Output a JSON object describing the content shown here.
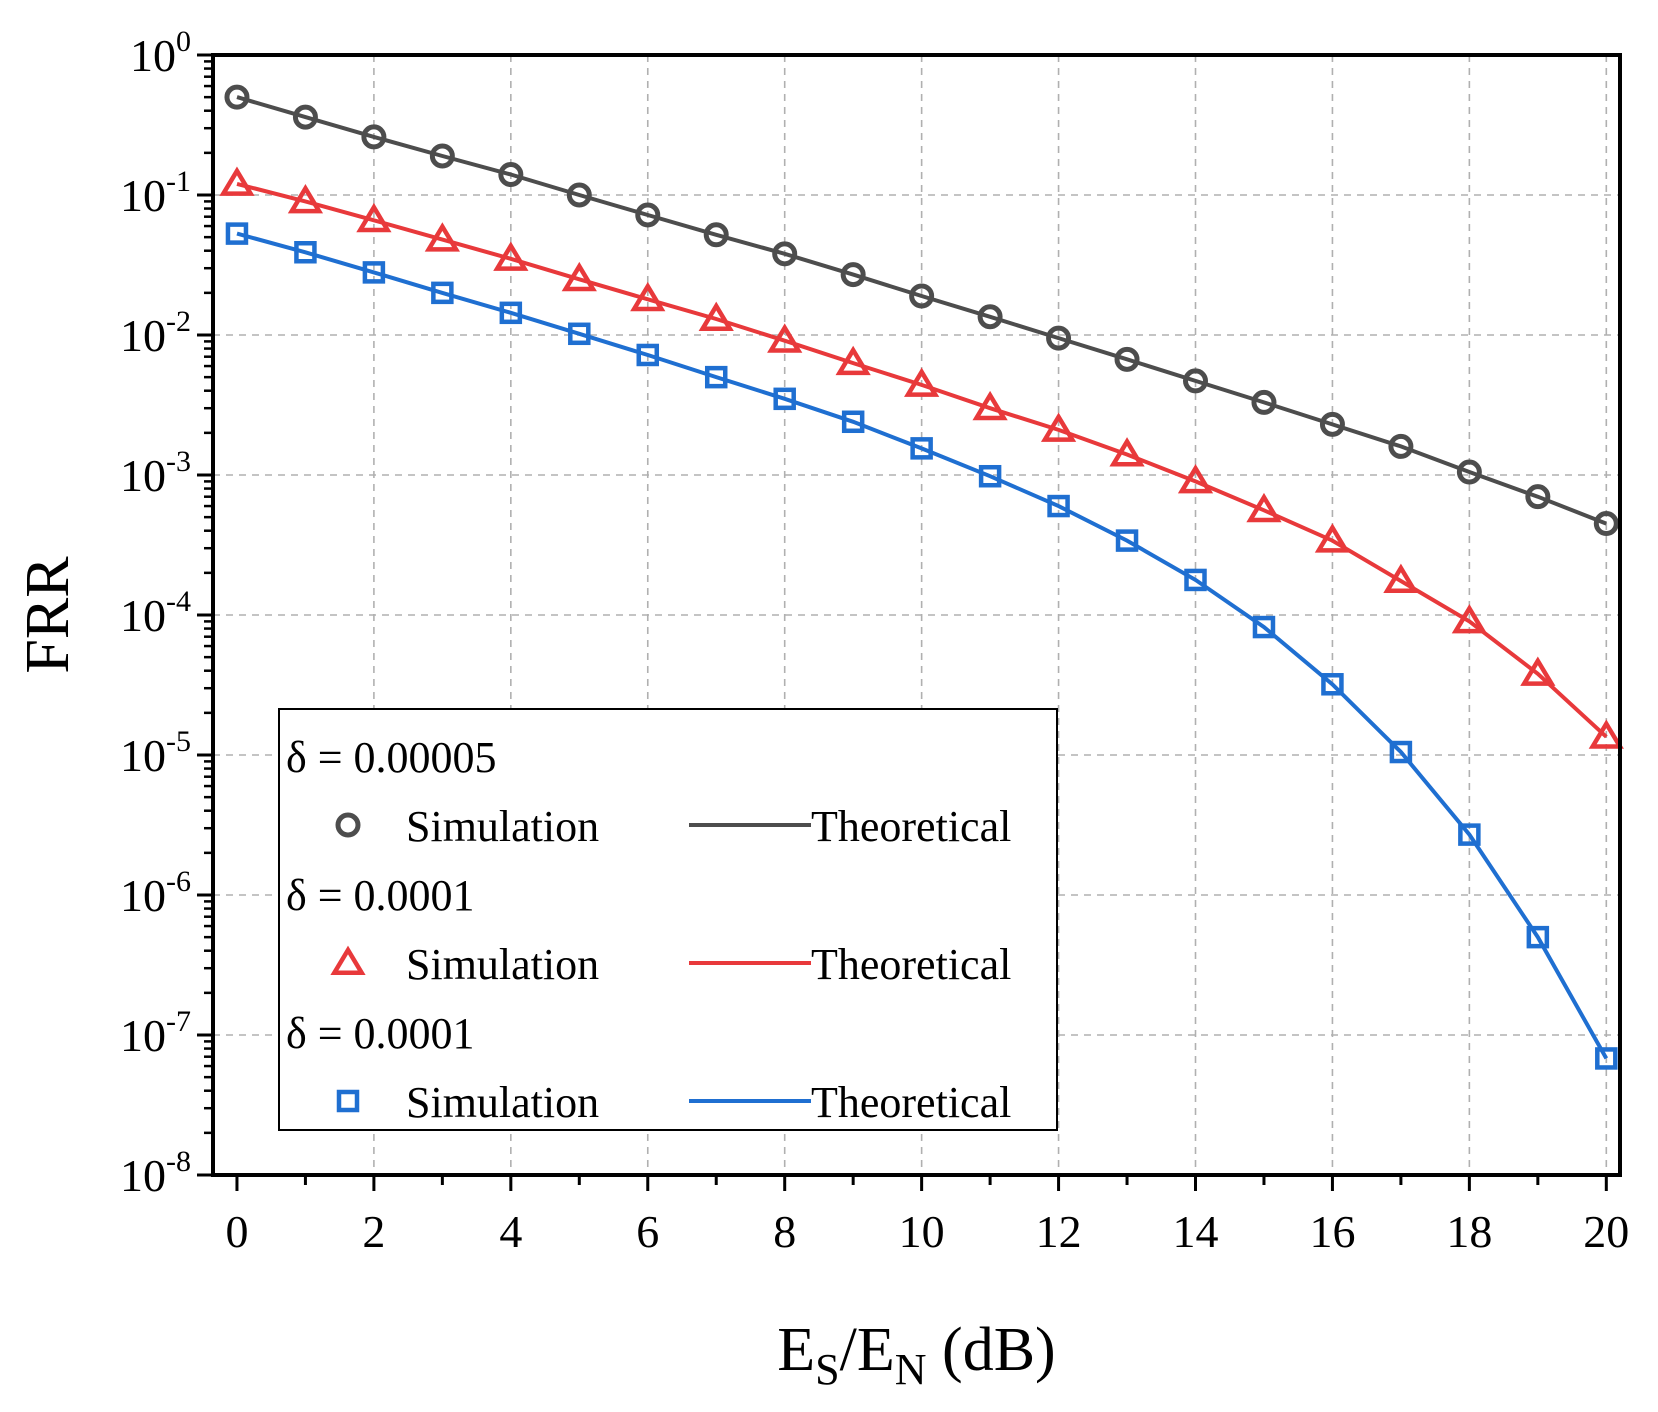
{
  "chart_data": {
    "type": "line",
    "yscale": "log",
    "xlabel": {
      "main": "E",
      "sub1": "S",
      "mid": "/E",
      "sub2": "N",
      "tail": " (dB)"
    },
    "ylabel": "FRR",
    "xlim": [
      0,
      20
    ],
    "ylim_exp": [
      -8,
      0
    ],
    "xticks": [
      0,
      2,
      4,
      6,
      8,
      10,
      12,
      14,
      16,
      18,
      20
    ],
    "yticks": [
      {
        "base": "10",
        "exp": "0"
      },
      {
        "base": "10",
        "exp": "-1"
      },
      {
        "base": "10",
        "exp": "-2"
      },
      {
        "base": "10",
        "exp": "-3"
      },
      {
        "base": "10",
        "exp": "-4"
      },
      {
        "base": "10",
        "exp": "-5"
      },
      {
        "base": "10",
        "exp": "-6"
      },
      {
        "base": "10",
        "exp": "-7"
      },
      {
        "base": "10",
        "exp": "-8"
      }
    ],
    "grid": true,
    "x": [
      0,
      1,
      2,
      3,
      4,
      5,
      6,
      7,
      8,
      9,
      10,
      11,
      12,
      13,
      14,
      15,
      16,
      17,
      18,
      19,
      20
    ],
    "series": [
      {
        "name": "δ = 0.00005",
        "color": "#4d4d4d",
        "marker": "circle",
        "values": [
          0.5,
          0.36,
          0.26,
          0.19,
          0.14,
          0.1,
          0.072,
          0.052,
          0.038,
          0.027,
          0.019,
          0.0135,
          0.0095,
          0.0067,
          0.0047,
          0.0033,
          0.0023,
          0.0016,
          0.00105,
          0.0007,
          0.00045
        ]
      },
      {
        "name": "δ = 0.0001",
        "color": "#e8393b",
        "marker": "triangle",
        "values": [
          0.12,
          0.09,
          0.066,
          0.048,
          0.035,
          0.025,
          0.018,
          0.013,
          0.0091,
          0.0063,
          0.0044,
          0.003,
          0.0021,
          0.0014,
          0.0009,
          0.00056,
          0.00034,
          0.000175,
          9e-05,
          3.8e-05,
          1.35e-05
        ]
      },
      {
        "name": "δ = 0.0001",
        "color": "#1f6fd1",
        "marker": "square",
        "values": [
          0.053,
          0.039,
          0.028,
          0.02,
          0.0144,
          0.0102,
          0.0072,
          0.005,
          0.0035,
          0.0024,
          0.00155,
          0.00098,
          0.0006,
          0.00034,
          0.000178,
          8.2e-05,
          3.2e-05,
          1.05e-05,
          2.7e-06,
          5e-07,
          6.8e-08
        ]
      }
    ],
    "legend": {
      "position": "bottom-left",
      "entries": [
        {
          "header": "δ = 0.00005",
          "sim_label": "Simulation",
          "theo_label": "Theoretical"
        },
        {
          "header": "δ = 0.0001",
          "sim_label": "Simulation",
          "theo_label": "Theoretical"
        },
        {
          "header": "δ = 0.0001",
          "sim_label": "Simulation",
          "theo_label": "Theoretical"
        }
      ]
    }
  }
}
